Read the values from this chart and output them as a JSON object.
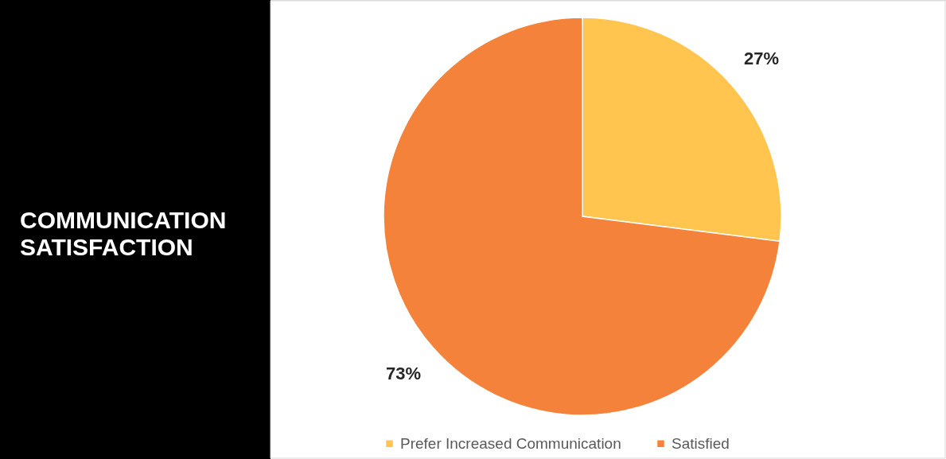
{
  "chart_data": {
    "type": "pie",
    "title": "COMMUNICATION SATISFACTION",
    "categories": [
      "Prefer Increased Communication",
      "Satisfied"
    ],
    "values": [
      27,
      73
    ],
    "colors": [
      "#ffc54f",
      "#f4823a"
    ],
    "value_labels": [
      "27%",
      "73%"
    ],
    "legend": "bottom"
  }
}
